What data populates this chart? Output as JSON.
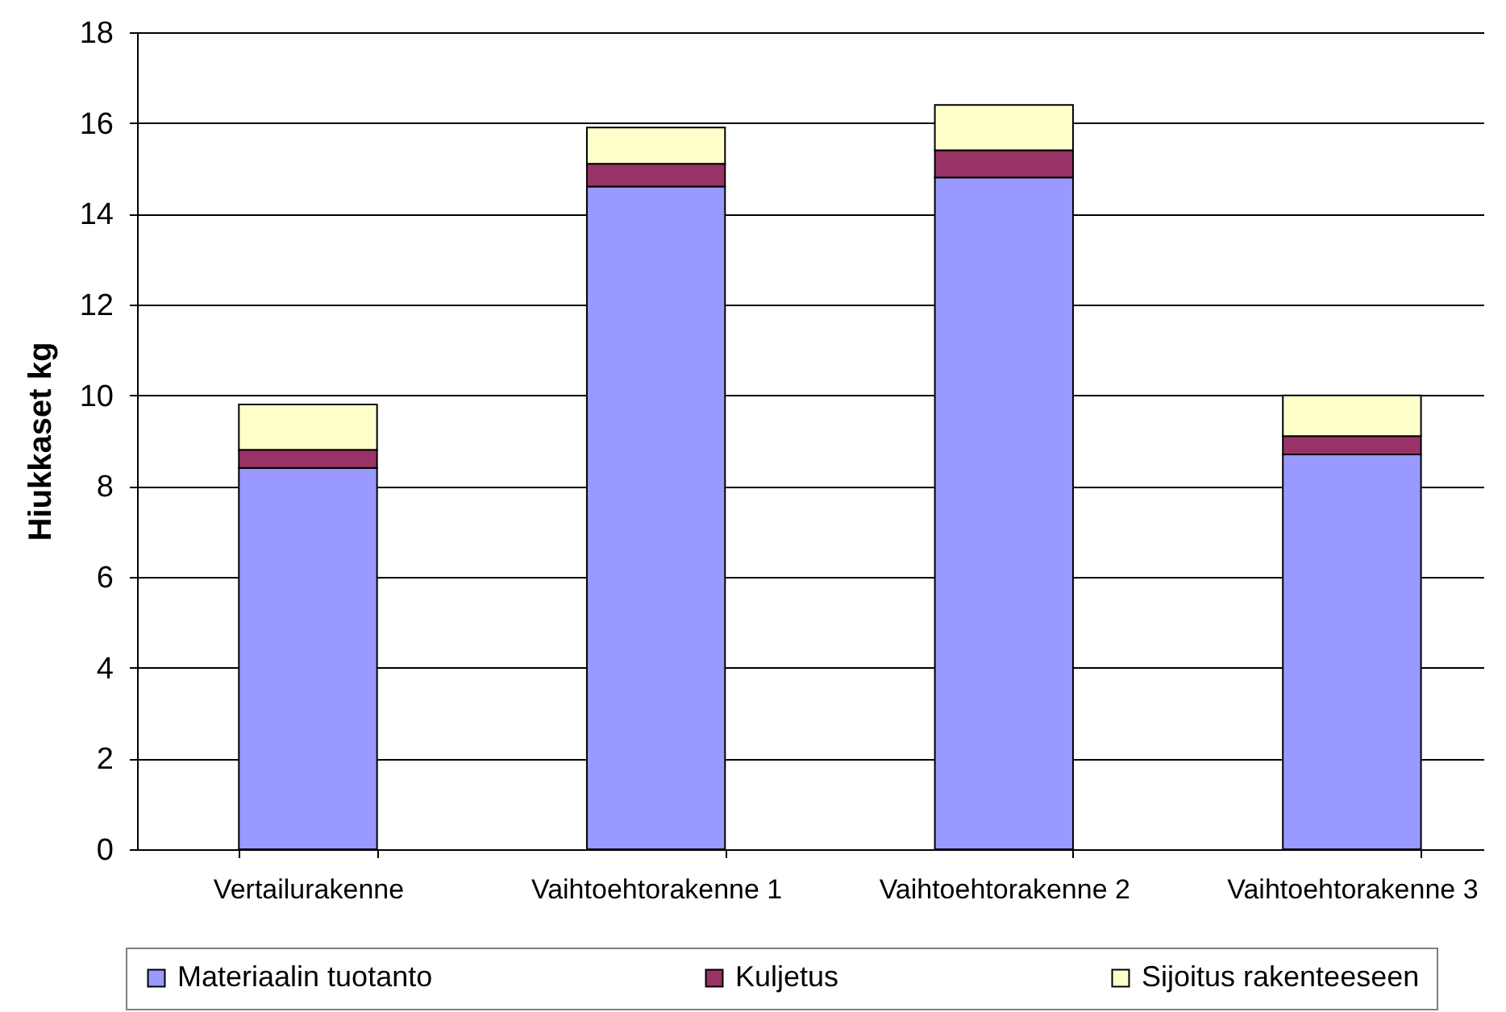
{
  "chart_data": {
    "type": "bar",
    "stacked": true,
    "categories": [
      "Vertailurakenne",
      "Vaihtoehtorakenne 1",
      "Vaihtoehtorakenne 2",
      "Vaihtoehtorakenne 3"
    ],
    "series": [
      {
        "name": "Materiaalin tuotanto",
        "color": "#9999ff",
        "values": [
          8.4,
          14.6,
          14.8,
          8.7
        ]
      },
      {
        "name": "Kuljetus",
        "color": "#993366",
        "values": [
          0.4,
          0.5,
          0.6,
          0.4
        ]
      },
      {
        "name": "Sijoitus rakenteeseen",
        "color": "#ffffcc",
        "values": [
          1.0,
          0.8,
          1.0,
          0.9
        ]
      }
    ],
    "ylabel": "Hiukkaset kg",
    "ylim": [
      0,
      18
    ],
    "yticks": [
      0,
      2,
      4,
      6,
      8,
      10,
      12,
      14,
      16,
      18
    ],
    "grid": "y",
    "legend": "bottom"
  }
}
